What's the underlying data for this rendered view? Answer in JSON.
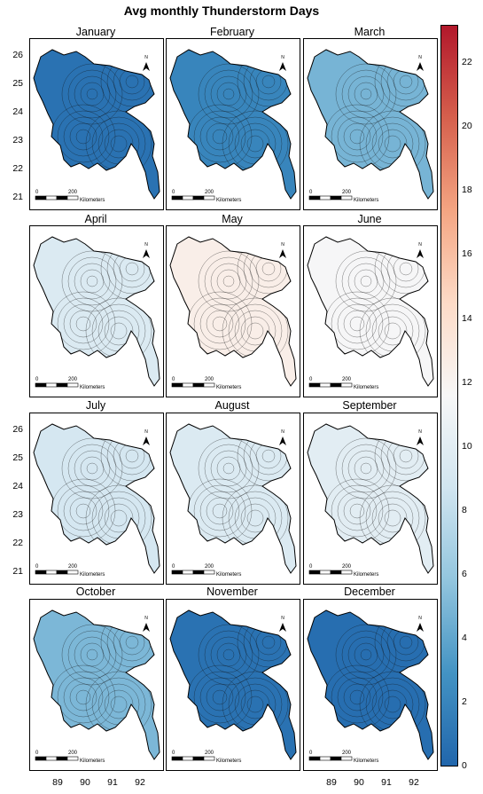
{
  "title": "Avg monthly Thunderstorm Days",
  "months": [
    {
      "name": "January",
      "avg": 0.8
    },
    {
      "name": "February",
      "avg": 2.0
    },
    {
      "name": "March",
      "avg": 4.8
    },
    {
      "name": "April",
      "avg": 9.5
    },
    {
      "name": "May",
      "avg": 12.5
    },
    {
      "name": "June",
      "avg": 11.5
    },
    {
      "name": "July",
      "avg": 9.0
    },
    {
      "name": "August",
      "avg": 9.5
    },
    {
      "name": "September",
      "avg": 10.0
    },
    {
      "name": "October",
      "avg": 5.0
    },
    {
      "name": "November",
      "avg": 0.8
    },
    {
      "name": "December",
      "avg": 0.5
    }
  ],
  "lat_ticks": [
    "26",
    "25",
    "24",
    "23",
    "22",
    "21"
  ],
  "lon_ticks": [
    "89",
    "90",
    "91",
    "92"
  ],
  "scalebar": {
    "zero": "0",
    "mid": "200",
    "unit": "Kilometers"
  },
  "north_label": "N",
  "colorbar": {
    "ticks": [
      "0",
      "2",
      "4",
      "6",
      "8",
      "10",
      "12",
      "14",
      "16",
      "18",
      "20",
      "22"
    ],
    "min": 0,
    "max": 23.2,
    "colors": [
      "#2166ac",
      "#4393c3",
      "#92c5de",
      "#d1e5f0",
      "#f7f7f7",
      "#fddbc7",
      "#f4a582",
      "#d6604d",
      "#b2182b"
    ]
  }
}
